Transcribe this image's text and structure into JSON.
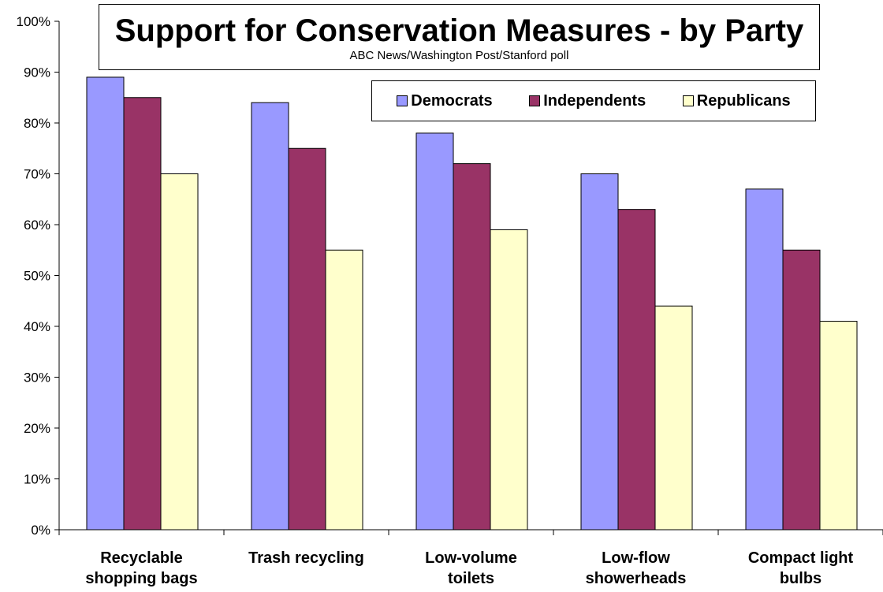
{
  "chart_data": {
    "type": "bar",
    "title": "Support for Conservation Measures - by Party",
    "subtitle": "ABC News/Washington Post/Stanford poll",
    "categories": [
      [
        "Recyclable",
        "shopping bags"
      ],
      [
        "Trash recycling"
      ],
      [
        "Low-volume",
        "toilets"
      ],
      [
        "Low-flow",
        "showerheads"
      ],
      [
        "Compact light",
        "bulbs"
      ]
    ],
    "series": [
      {
        "name": "Democrats",
        "values": [
          89,
          84,
          78,
          70,
          67
        ],
        "color": "#9999FF"
      },
      {
        "name": "Independents",
        "values": [
          85,
          75,
          72,
          63,
          55
        ],
        "color": "#993366"
      },
      {
        "name": "Republicans",
        "values": [
          70,
          55,
          59,
          44,
          41
        ],
        "color": "#FFFFCC"
      }
    ],
    "yticks": [
      "0%",
      "10%",
      "20%",
      "30%",
      "40%",
      "50%",
      "60%",
      "70%",
      "80%",
      "90%",
      "100%"
    ],
    "ylim": [
      0,
      100
    ],
    "grid": false,
    "legend_position": "top-right"
  }
}
